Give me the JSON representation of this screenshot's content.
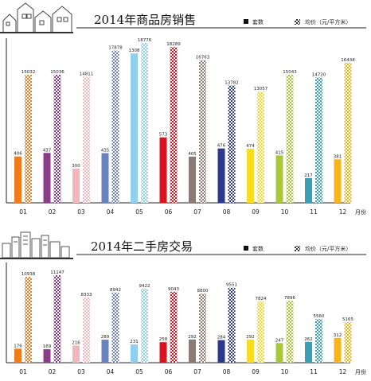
{
  "chart_data": [
    {
      "type": "bar",
      "title": "2014年商品房销售",
      "legend": [
        "套数",
        "均价（元/平方米）"
      ],
      "x_unit": "月份",
      "categories": [
        "01",
        "02",
        "03",
        "04",
        "05",
        "06",
        "07",
        "08",
        "09",
        "10",
        "11",
        "12"
      ],
      "series": [
        {
          "name": "套数",
          "values": [
            406,
            437,
            300,
            435,
            1308,
            573,
            405,
            476,
            474,
            415,
            217,
            381
          ]
        },
        {
          "name": "均价（元/平方米）",
          "values": [
            15032,
            15036,
            14811,
            17878,
            18776,
            18289,
            16763,
            13782,
            13057,
            15043,
            14720,
            16438
          ]
        }
      ],
      "colors": [
        "#f07b1a",
        "#8a3e88",
        "#f2b6bd",
        "#6a82c0",
        "#8fd0ef",
        "#d9141e",
        "#8b7b72",
        "#2d3a8c",
        "#f7dd20",
        "#a8c83a",
        "#3a9fb4",
        "#f6b51a"
      ]
    },
    {
      "type": "bar",
      "title": "2014年二手房交易",
      "legend": [
        "套数",
        "均价（元/平方米）"
      ],
      "x_unit": "月份",
      "categories": [
        "01",
        "02",
        "03",
        "04",
        "05",
        "06",
        "07",
        "08",
        "09",
        "10",
        "11",
        "12"
      ],
      "series": [
        {
          "name": "套数",
          "values": [
            176,
            169,
            216,
            289,
            231,
            258,
            292,
            284,
            292,
            247,
            262,
            312
          ]
        },
        {
          "name": "均价（元/平方米）",
          "values": [
            10938,
            11147,
            8333,
            8942,
            9422,
            9043,
            8800,
            9551,
            7824,
            7896,
            5560,
            5165
          ]
        }
      ],
      "colors": [
        "#f07b1a",
        "#8a3e88",
        "#f2b6bd",
        "#6a82c0",
        "#8fd0ef",
        "#d9141e",
        "#8b7b72",
        "#2d3a8c",
        "#f7dd20",
        "#a8c83a",
        "#3a9fb4",
        "#f6b51a"
      ]
    }
  ]
}
